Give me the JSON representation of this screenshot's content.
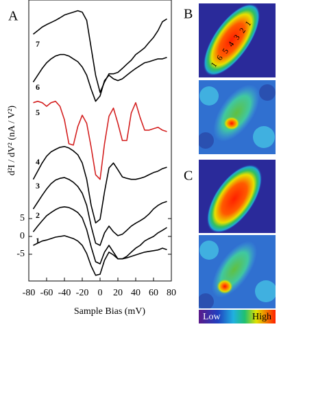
{
  "chart_data": {
    "type": "line",
    "panel_label": "A",
    "xlabel": "Sample Bias (mV)",
    "ylabel": "d²I / dV² (nA / V²)",
    "xlim": [
      -80,
      80
    ],
    "xticks": [
      -80,
      -60,
      -40,
      -20,
      0,
      20,
      40,
      60,
      80
    ],
    "ylim": [
      -12.5,
      66.3
    ],
    "yticks": [
      -5,
      0,
      5
    ],
    "x": [
      -75,
      -70,
      -65,
      -60,
      -55,
      -50,
      -45,
      -40,
      -35,
      -30,
      -25,
      -20,
      -15,
      -10,
      -5,
      0,
      5,
      10,
      15,
      20,
      25,
      30,
      35,
      40,
      45,
      50,
      55,
      60,
      65,
      70,
      75
    ],
    "series": [
      {
        "name": "1",
        "color": "#000000",
        "values": [
          -2.5,
          -1.9,
          -1.3,
          -1.0,
          -0.6,
          -0.2,
          0,
          0.2,
          -0.2,
          -0.6,
          -1.3,
          -2.5,
          -4.8,
          -8.3,
          -10.9,
          -10.6,
          -6.7,
          -4.4,
          -5.2,
          -6.3,
          -6.3,
          -6.0,
          -5.6,
          -5.2,
          -4.8,
          -4.4,
          -4.2,
          -4.0,
          -3.8,
          -3.3,
          -3.7
        ]
      },
      {
        "name": "2",
        "color": "#000000",
        "values": [
          1.3,
          2.9,
          4.4,
          5.8,
          6.7,
          7.5,
          8.1,
          8.3,
          8.1,
          7.5,
          6.7,
          5.2,
          1.9,
          -2.9,
          -7.1,
          -7.7,
          -4.4,
          -2.5,
          -4.4,
          -6.3,
          -6.3,
          -5.6,
          -4.4,
          -3.3,
          -2.5,
          -1.3,
          -0.6,
          0,
          1.0,
          1.7,
          2.5
        ]
      },
      {
        "name": "3",
        "color": "#000000",
        "values": [
          7.7,
          9.6,
          11.5,
          13.3,
          14.8,
          15.8,
          16.3,
          16.5,
          16.0,
          15.2,
          14.0,
          12.1,
          8.7,
          2.9,
          -1.9,
          -2.5,
          1.0,
          2.9,
          1.3,
          0.2,
          0.6,
          1.7,
          2.9,
          3.7,
          4.4,
          5.2,
          6.3,
          7.7,
          8.7,
          9.4,
          9.8
        ]
      },
      {
        "name": "4",
        "color": "#000000",
        "values": [
          16.0,
          18.3,
          20.6,
          22.5,
          23.7,
          24.4,
          25.0,
          25.2,
          24.8,
          24.0,
          22.9,
          20.6,
          16.0,
          8.7,
          3.8,
          4.8,
          12.5,
          19.2,
          20.6,
          18.7,
          16.7,
          16.3,
          16.0,
          16.0,
          16.3,
          16.7,
          17.3,
          17.9,
          18.3,
          19.0,
          19.4
        ]
      },
      {
        "name": "5",
        "color": "#d42020",
        "values": [
          37.5,
          37.9,
          37.5,
          36.5,
          37.5,
          37.9,
          36.5,
          32.7,
          26.0,
          25.6,
          30.8,
          34.0,
          31.7,
          25.0,
          17.3,
          16.0,
          26.0,
          33.7,
          36.0,
          31.7,
          26.9,
          26.9,
          34.6,
          37.5,
          33.3,
          29.8,
          29.8,
          30.2,
          30.6,
          29.8,
          29.4
        ]
      },
      {
        "name": "6",
        "color": "#000000",
        "values": [
          43.3,
          45.2,
          47.1,
          48.7,
          49.8,
          50.6,
          51.0,
          51.0,
          50.6,
          49.8,
          49.0,
          47.5,
          45.2,
          41.3,
          37.9,
          39.4,
          43.7,
          45.2,
          44.2,
          43.7,
          44.2,
          45.2,
          46.2,
          47.1,
          47.9,
          48.7,
          49.0,
          49.4,
          49.8,
          49.8,
          50.2
        ]
      },
      {
        "name": "7",
        "color": "#000000",
        "values": [
          56.7,
          57.7,
          58.7,
          59.4,
          60.0,
          60.6,
          61.3,
          62.1,
          62.5,
          62.9,
          63.3,
          62.9,
          60.6,
          52.9,
          45.2,
          40.4,
          43.3,
          45.6,
          45.6,
          46.0,
          47.1,
          48.3,
          49.4,
          51.0,
          51.9,
          52.9,
          54.4,
          55.8,
          57.7,
          60.2,
          61.0
        ]
      }
    ]
  },
  "panels": {
    "labels": [
      "B",
      "C"
    ],
    "atom_labels": [
      "1",
      "6",
      "5",
      "4",
      "3",
      "2",
      "1"
    ],
    "colorbar": {
      "low": "Low",
      "high": "High"
    }
  }
}
